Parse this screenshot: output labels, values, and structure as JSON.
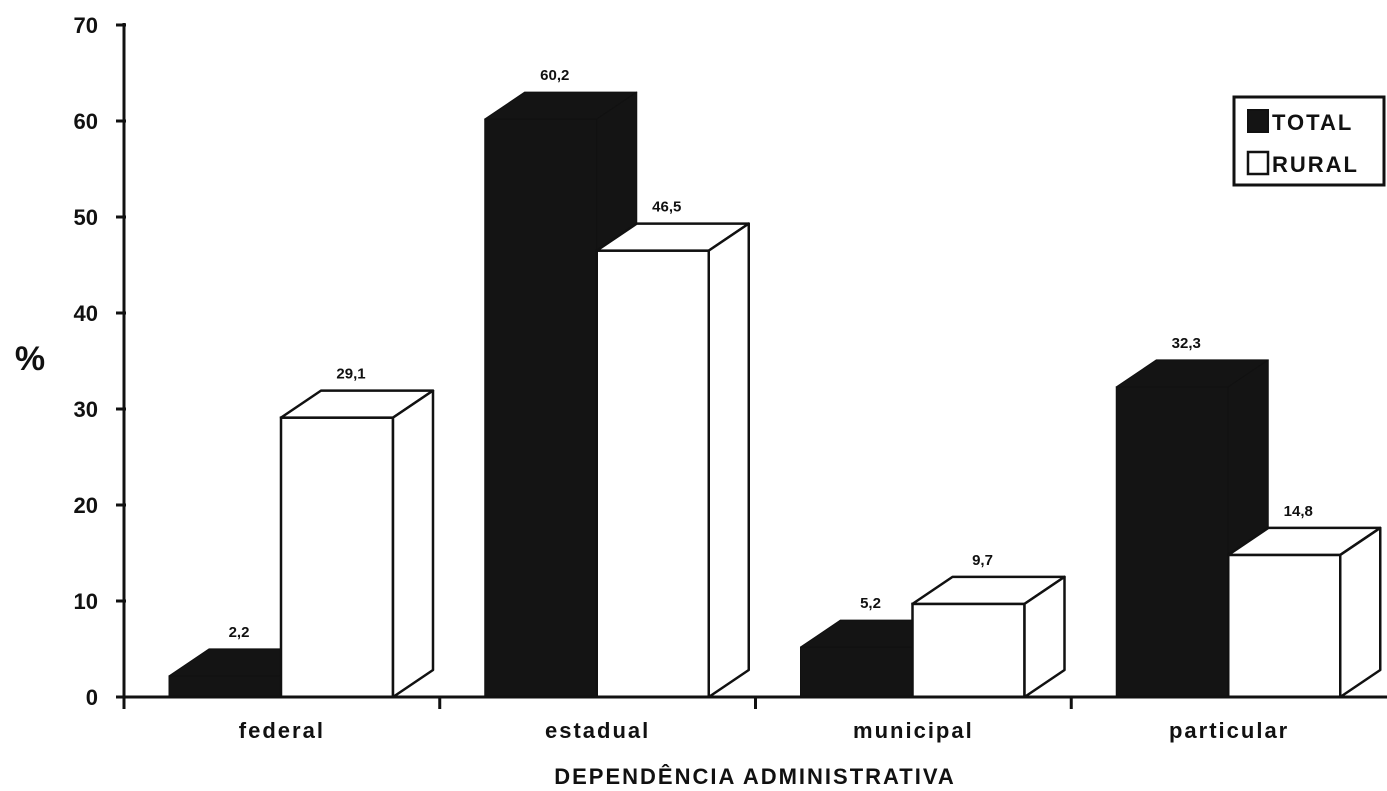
{
  "chart_data": {
    "type": "bar",
    "variant": "3d-clustered-column",
    "categories": [
      "federal",
      "estadual",
      "municipal",
      "particular"
    ],
    "series": [
      {
        "name": "TOTAL",
        "values": [
          2.2,
          60.2,
          5.2,
          32.3
        ],
        "labels": [
          "2,2",
          "60,2",
          "5,2",
          "32,3"
        ],
        "color": "#141414"
      },
      {
        "name": "RURAL",
        "values": [
          29.1,
          46.5,
          9.7,
          14.8
        ],
        "labels": [
          "29,1",
          "46,5",
          "9,7",
          "14,8"
        ],
        "color": "#ffffff"
      }
    ],
    "yticks": [
      "0",
      "10",
      "20",
      "30",
      "40",
      "50",
      "60",
      "70"
    ],
    "ylim": [
      0,
      70
    ],
    "ylabel": "%",
    "xlabel": "DEPENDÊNCIA ADMINISTRATIVA",
    "legend_position": "top-right",
    "grid": false
  }
}
